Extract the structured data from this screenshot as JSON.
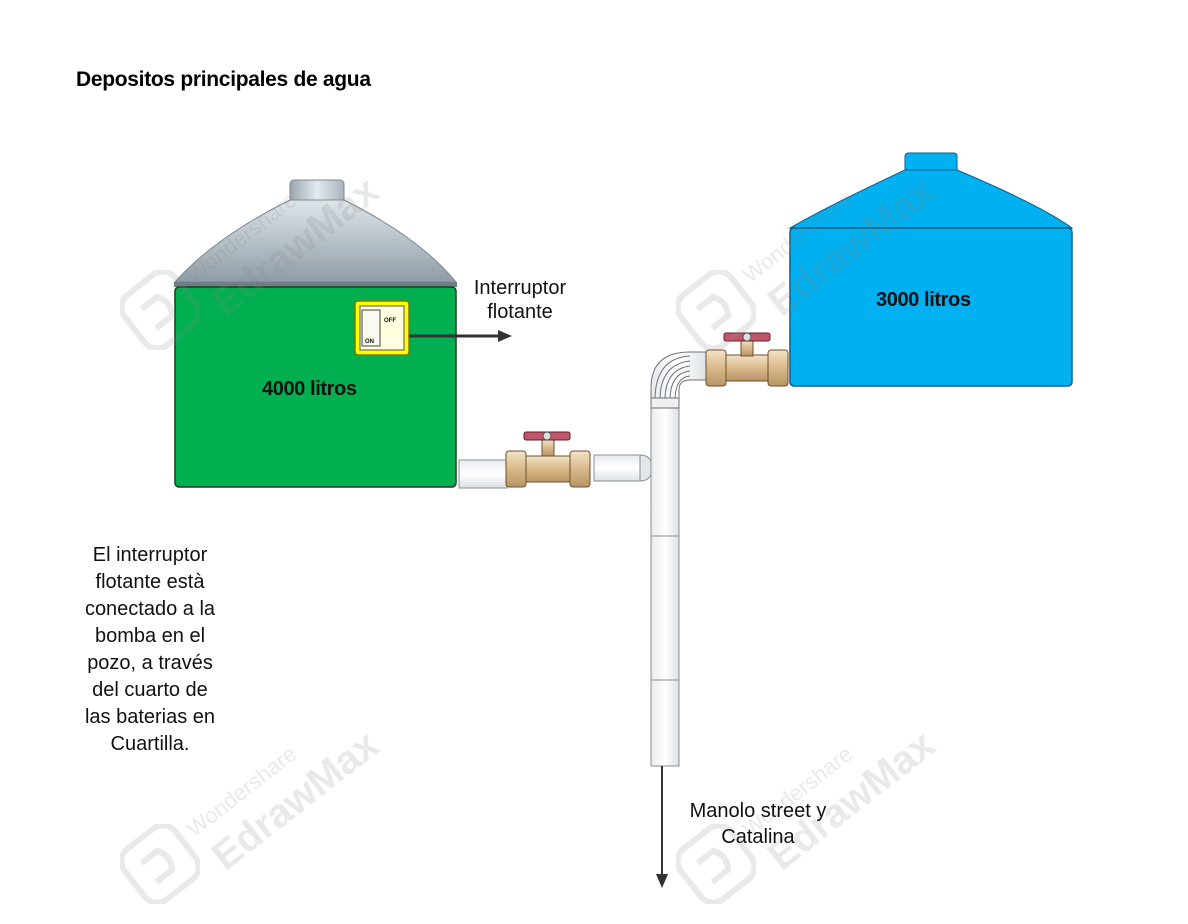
{
  "title": "Depositos principales de agua",
  "tanks": {
    "left": {
      "label": "4000 litros",
      "color": "#00b050",
      "roof_color": "#b8c4cc"
    },
    "right": {
      "label": "3000 litros",
      "color": "#00b0f0"
    }
  },
  "float_switch": {
    "label": "Interruptor\nflotante",
    "on_text": "ON",
    "off_text": "OFF",
    "color": "#ffff00"
  },
  "note": "El interruptor\nflotante està\nconectado a la\nbomba en el\npozo, a través\ndel cuarto de\nlas baterias en\nCuartilla.",
  "destination": "Manolo street y\nCatalina",
  "watermark": {
    "brand_small": "Wondershare",
    "brand_large": "EdrawMax"
  }
}
